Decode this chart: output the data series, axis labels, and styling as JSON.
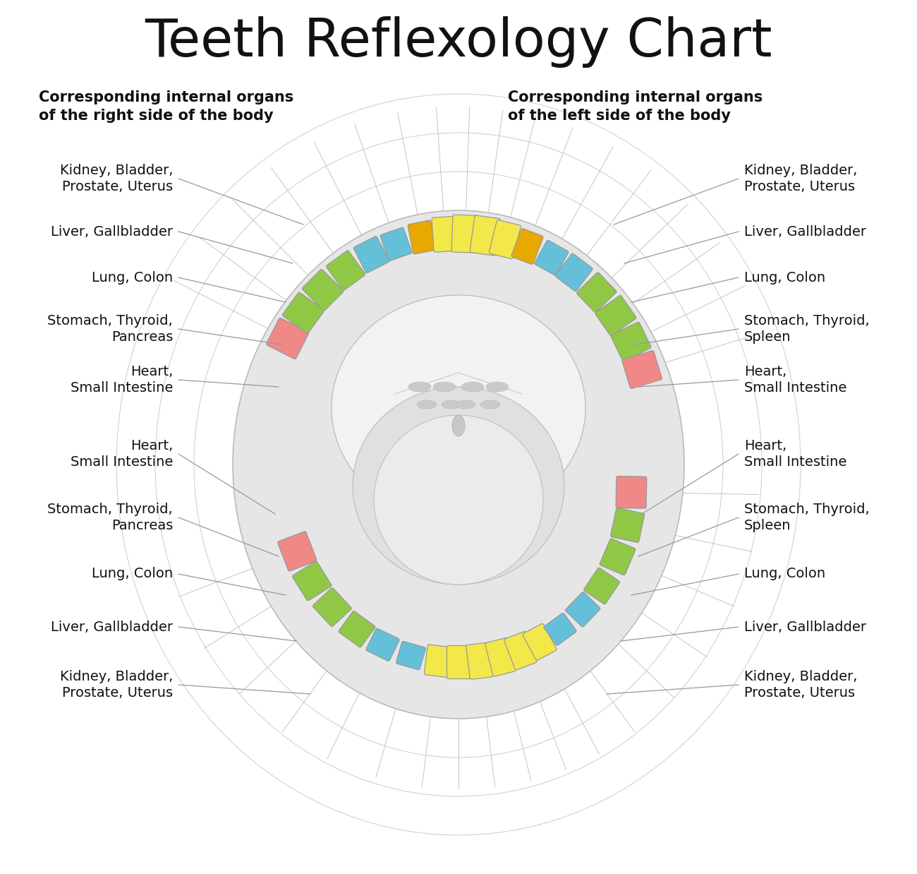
{
  "title": "Teeth Reflexology Chart",
  "subtitle_left": "Corresponding internal organs\nof the right side of the body",
  "subtitle_right": "Corresponding internal organs\nof the left side of the body",
  "bg_color": "#ffffff",
  "title_fontsize": 54,
  "subtitle_fontsize": 15,
  "label_fontsize": 14,
  "colors": {
    "yellow": "#F2E84A",
    "yellow_orange": "#E8A800",
    "blue": "#64C0D8",
    "green": "#90C846",
    "pink": "#F08888",
    "jaw_fill": "#E6E6E6",
    "jaw_fill2": "#DADADA",
    "jaw_edge": "#BBBBBB",
    "palate_fill": "#D0D0D0",
    "tooth_edge": "#999999",
    "line_color": "#AAAAAA"
  },
  "right_labels": [
    "Kidney, Bladder,\nProstate, Uterus",
    "Liver, Gallbladder",
    "Lung, Colon",
    "Stomach, Thyroid,\nPancreas",
    "Heart,\nSmall Intestine",
    "Heart,\nSmall Intestine",
    "Stomach, Thyroid,\nPancreas",
    "Lung, Colon",
    "Liver, Gallbladder",
    "Kidney, Bladder,\nProstate, Uterus"
  ],
  "left_labels": [
    "Kidney, Bladder,\nProstate, Uterus",
    "Liver, Gallbladder",
    "Lung, Colon",
    "Stomach, Thyroid,\nSpleen",
    "Heart,\nSmall Intestine",
    "Heart,\nSmall Intestine",
    "Stomach, Thyroid,\nSpleen",
    "Lung, Colon",
    "Liver, Gallbladder",
    "Kidney, Bladder,\nProstate, Uterus"
  ]
}
